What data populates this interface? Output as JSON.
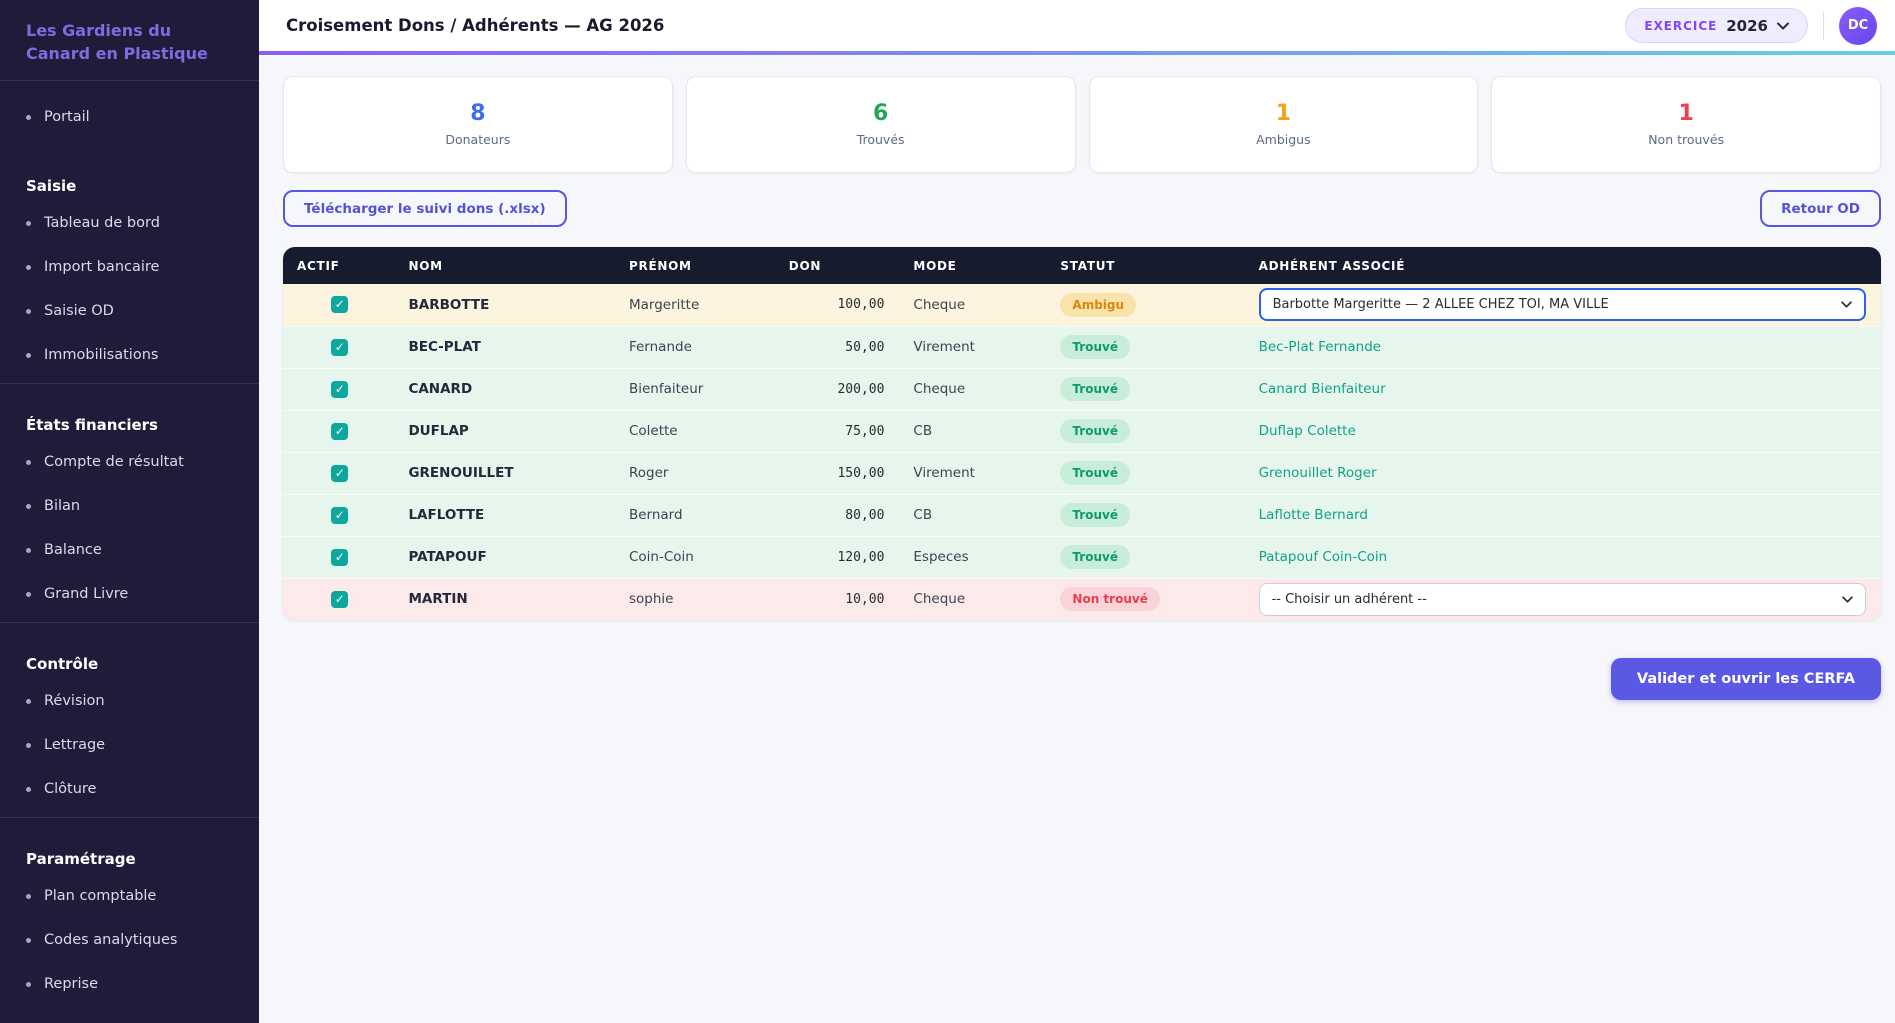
{
  "sidebar": {
    "org_name": "Les Gardiens du Canard en Plastique",
    "groups": [
      {
        "title": null,
        "items": [
          "Portail"
        ]
      },
      {
        "title": "Saisie",
        "items": [
          "Tableau de bord",
          "Import bancaire",
          "Saisie OD",
          "Immobilisations"
        ]
      },
      {
        "title": "États financiers",
        "items": [
          "Compte de résultat",
          "Bilan",
          "Balance",
          "Grand Livre"
        ]
      },
      {
        "title": "Contrôle",
        "items": [
          "Révision",
          "Lettrage",
          "Clôture"
        ]
      },
      {
        "title": "Paramétrage",
        "items": [
          "Plan comptable",
          "Codes analytiques",
          "Reprise"
        ]
      }
    ]
  },
  "header": {
    "title": "Croisement Dons / Adhérents — AG 2026",
    "exercice_label": "EXERCICE",
    "exercice_value": "2026",
    "avatar_initials": "DC"
  },
  "stats": [
    {
      "value": "8",
      "label": "Donateurs",
      "color": "#3b6df0"
    },
    {
      "value": "6",
      "label": "Trouvés",
      "color": "#22a853"
    },
    {
      "value": "1",
      "label": "Ambigus",
      "color": "#f4a318"
    },
    {
      "value": "1",
      "label": "Non trouvés",
      "color": "#e94352"
    }
  ],
  "actions": {
    "download_label": "Télécharger le suivi dons (.xlsx)",
    "back_label": "Retour OD",
    "validate_label": "Valider et ouvrir les CERFA"
  },
  "table": {
    "columns": [
      "ACTIF",
      "NOM",
      "PRÉNOM",
      "DON",
      "MODE",
      "STATUT",
      "ADHÉRENT ASSOCIÉ"
    ],
    "rows": [
      {
        "actif": true,
        "nom": "BARBOTTE",
        "prenom": "Margeritte",
        "don": "100,00",
        "mode": "Cheque",
        "statut": "Ambigu",
        "statut_type": "ambigu",
        "adherent_type": "select",
        "adherent": "Barbotte Margeritte — 2 ALLEE CHEZ TOI, MA VILLE"
      },
      {
        "actif": true,
        "nom": "BEC-PLAT",
        "prenom": "Fernande",
        "don": "50,00",
        "mode": "Virement",
        "statut": "Trouvé",
        "statut_type": "trouve",
        "adherent_type": "link",
        "adherent": "Bec-Plat Fernande"
      },
      {
        "actif": true,
        "nom": "CANARD",
        "prenom": "Bienfaiteur",
        "don": "200,00",
        "mode": "Cheque",
        "statut": "Trouvé",
        "statut_type": "trouve",
        "adherent_type": "link",
        "adherent": "Canard Bienfaiteur"
      },
      {
        "actif": true,
        "nom": "DUFLAP",
        "prenom": "Colette",
        "don": "75,00",
        "mode": "CB",
        "statut": "Trouvé",
        "statut_type": "trouve",
        "adherent_type": "link",
        "adherent": "Duflap Colette"
      },
      {
        "actif": true,
        "nom": "GRENOUILLET",
        "prenom": "Roger",
        "don": "150,00",
        "mode": "Virement",
        "statut": "Trouvé",
        "statut_type": "trouve",
        "adherent_type": "link",
        "adherent": "Grenouillet Roger"
      },
      {
        "actif": true,
        "nom": "LAFLOTTE",
        "prenom": "Bernard",
        "don": "80,00",
        "mode": "CB",
        "statut": "Trouvé",
        "statut_type": "trouve",
        "adherent_type": "link",
        "adherent": "Laflotte Bernard"
      },
      {
        "actif": true,
        "nom": "PATAPOUF",
        "prenom": "Coin-Coin",
        "don": "120,00",
        "mode": "Especes",
        "statut": "Trouvé",
        "statut_type": "trouve",
        "adherent_type": "link",
        "adherent": "Patapouf Coin-Coin"
      },
      {
        "actif": true,
        "nom": "MARTIN",
        "prenom": "sophie",
        "don": "10,00",
        "mode": "Cheque",
        "statut": "Non trouvé",
        "statut_type": "nontrouve",
        "adherent_type": "select",
        "adherent": "-- Choisir un adhérent --"
      }
    ]
  }
}
